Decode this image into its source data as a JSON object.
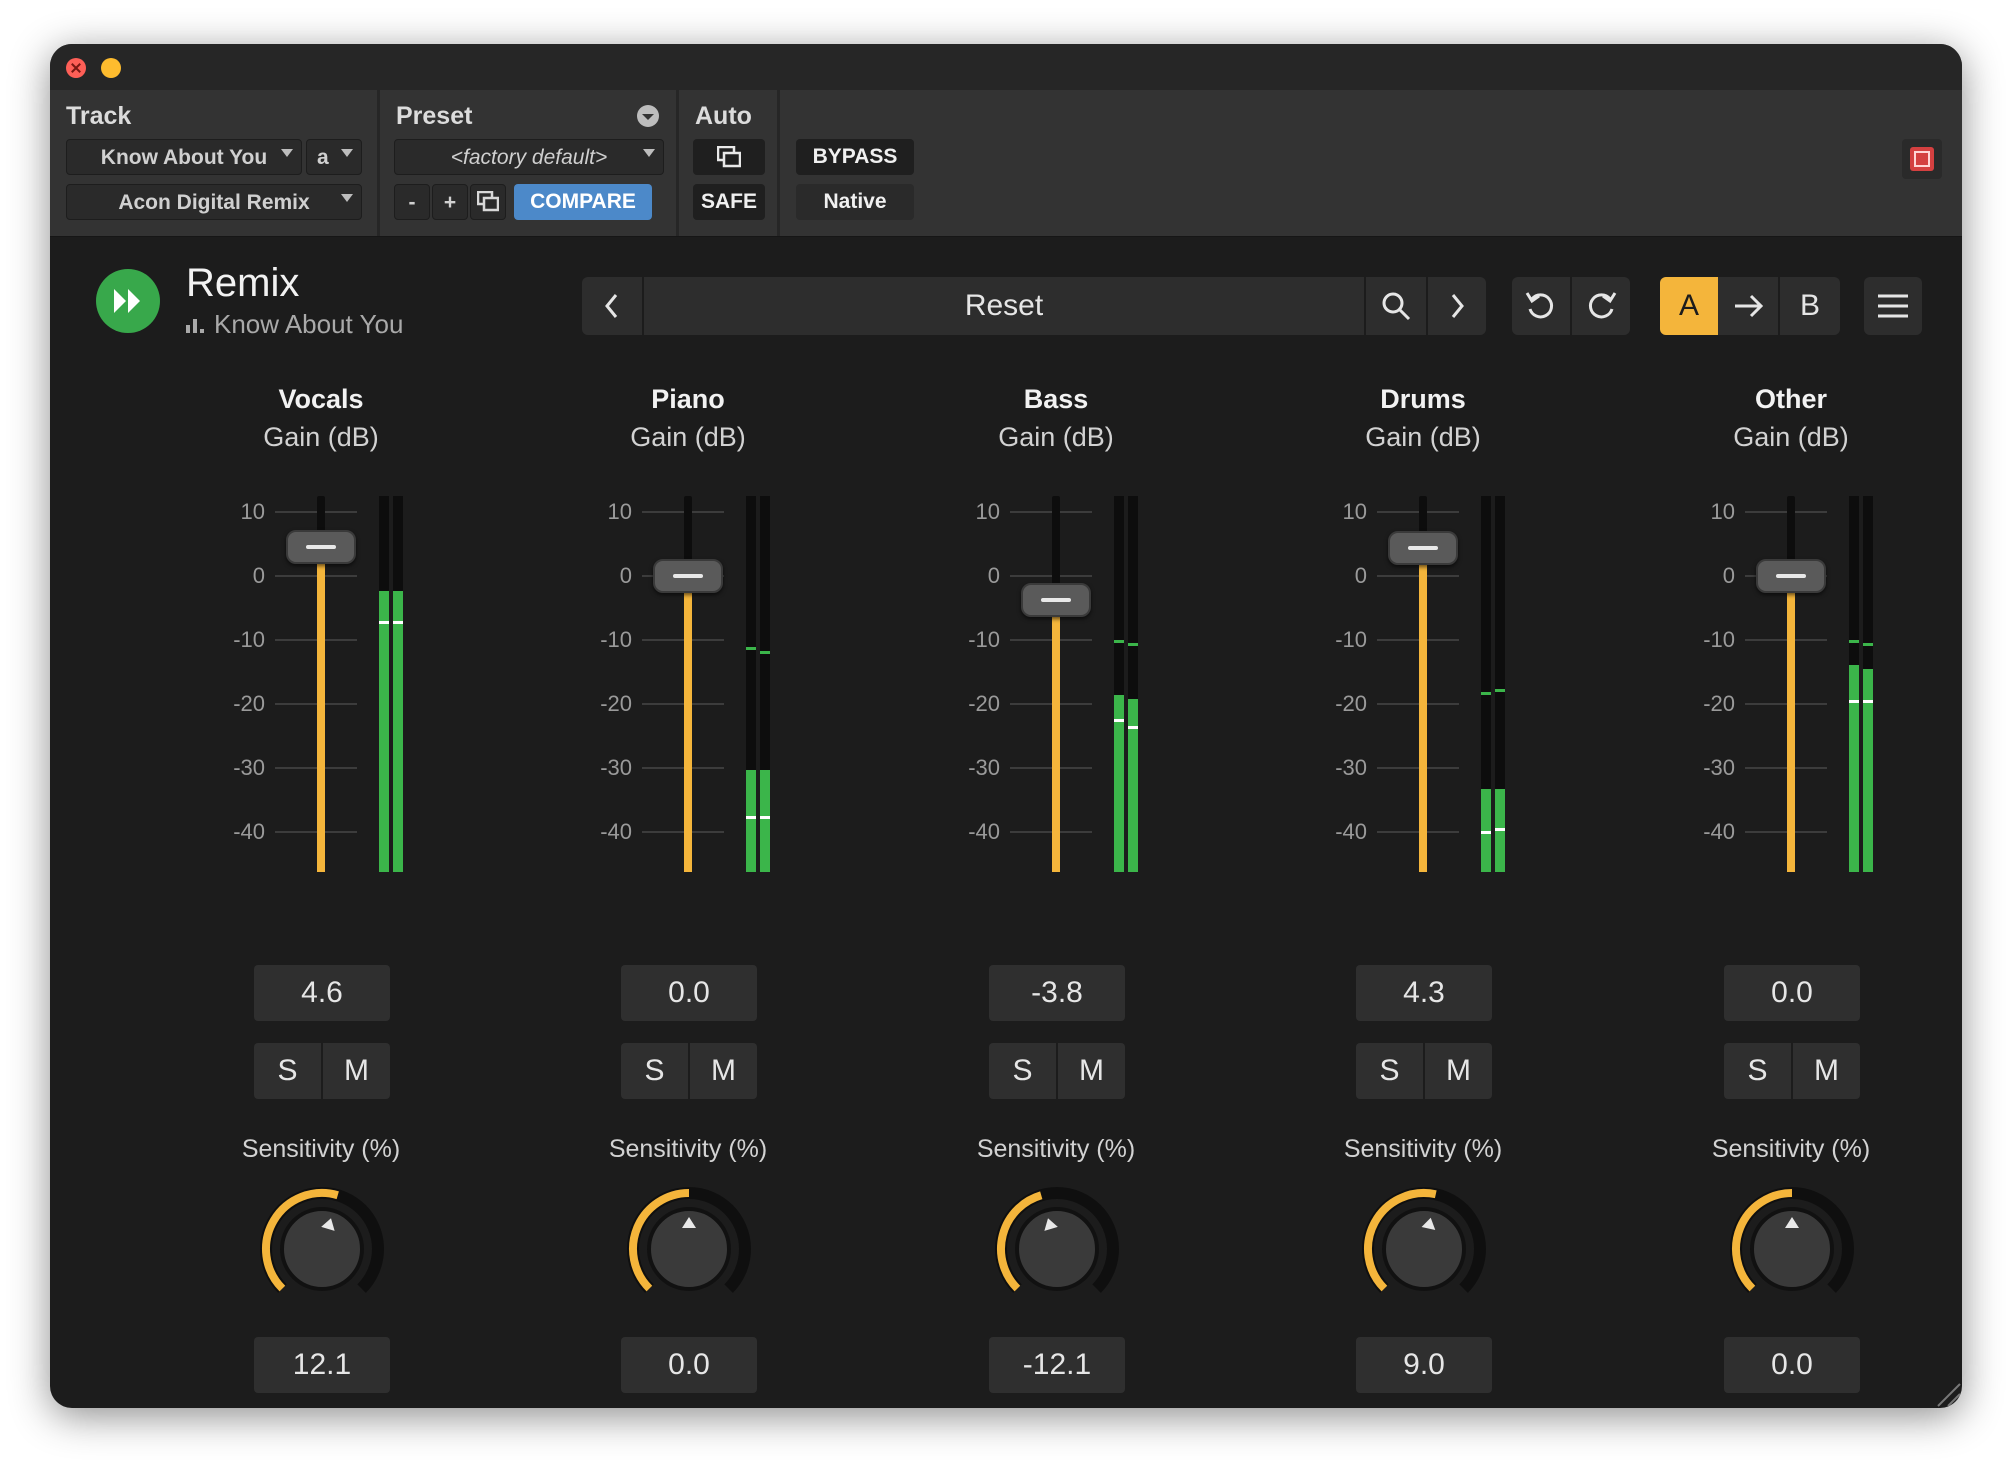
{
  "host": {
    "track": {
      "label": "Track",
      "name": "Know About You",
      "channel": "a",
      "plugin": "Acon Digital Remix"
    },
    "preset": {
      "label": "Preset",
      "name": "<factory default>",
      "minus": "-",
      "plus": "+",
      "compare": "COMPARE"
    },
    "auto": {
      "label": "Auto",
      "safe": "SAFE"
    },
    "bypass": "BYPASS",
    "native": "Native"
  },
  "plugin": {
    "title": "Remix",
    "subtitle": "Know About You",
    "preset_name": "Reset",
    "ab": {
      "a": "A",
      "b": "B"
    }
  },
  "colors": {
    "accent": "#f4b53b",
    "meter": "#3bb54a",
    "logo": "#38a84b",
    "compare": "#4c89c9"
  },
  "scale_ticks": [
    "10",
    "0",
    "-10",
    "-20",
    "-30",
    "-40"
  ],
  "channels": [
    {
      "name": "Vocals",
      "gain_label": "Gain (dB)",
      "gain": "4.6",
      "solo": "S",
      "mute": "M",
      "sensitivity_label": "Sensitivity (%)",
      "sensitivity": "12.1",
      "meter_levels": [
        0.74,
        0.74
      ],
      "meter_peaks": [
        0.74,
        0.74
      ],
      "meter_marks": [
        0.66,
        0.66
      ]
    },
    {
      "name": "Piano",
      "gain_label": "Gain (dB)",
      "gain": "0.0",
      "solo": "S",
      "mute": "M",
      "sensitivity_label": "Sensitivity (%)",
      "sensitivity": "0.0",
      "meter_levels": [
        0.27,
        0.27
      ],
      "meter_peaks": [
        0.59,
        0.58
      ],
      "meter_marks": [
        0.14,
        0.14
      ]
    },
    {
      "name": "Bass",
      "gain_label": "Gain (dB)",
      "gain": "-3.8",
      "solo": "S",
      "mute": "M",
      "sensitivity_label": "Sensitivity (%)",
      "sensitivity": "-12.1",
      "meter_levels": [
        0.47,
        0.46
      ],
      "meter_peaks": [
        0.61,
        0.6
      ],
      "meter_marks": [
        0.4,
        0.38
      ]
    },
    {
      "name": "Drums",
      "gain_label": "Gain (dB)",
      "gain": "4.3",
      "solo": "S",
      "mute": "M",
      "sensitivity_label": "Sensitivity (%)",
      "sensitivity": "9.0",
      "meter_levels": [
        0.22,
        0.22
      ],
      "meter_peaks": [
        0.47,
        0.48
      ],
      "meter_marks": [
        0.1,
        0.11
      ]
    },
    {
      "name": "Other",
      "gain_label": "Gain (dB)",
      "gain": "0.0",
      "solo": "S",
      "mute": "M",
      "sensitivity_label": "Sensitivity (%)",
      "sensitivity": "0.0",
      "meter_levels": [
        0.55,
        0.54
      ],
      "meter_peaks": [
        0.61,
        0.6
      ],
      "meter_marks": [
        0.45,
        0.45
      ]
    }
  ]
}
